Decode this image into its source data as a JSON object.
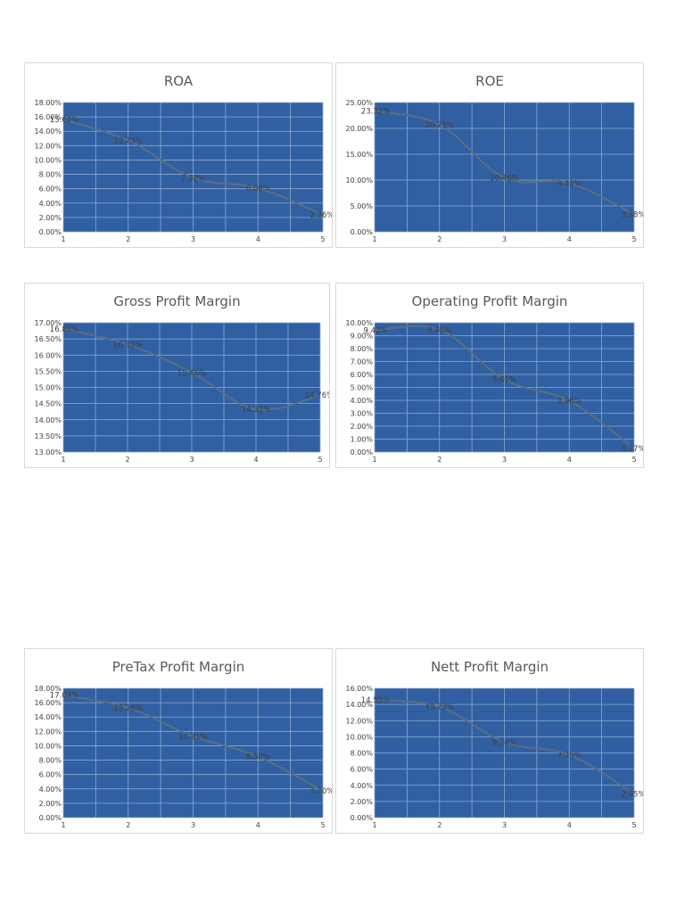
{
  "chart_data": [
    {
      "type": "line",
      "title": "ROA",
      "categories": [
        "1",
        "2",
        "3",
        "4",
        "5"
      ],
      "values": [
        15.62,
        12.73,
        7.52,
        6.08,
        2.36
      ],
      "data_labels": [
        "15.62%",
        "12.73%",
        "7.52%",
        "6.08%",
        "2.36%"
      ],
      "y_ticks": [
        "0.00%",
        "2.00%",
        "4.00%",
        "6.00%",
        "8.00%",
        "10.00%",
        "12.00%",
        "14.00%",
        "16.00%",
        "18.00%"
      ],
      "ylim": [
        0,
        18
      ],
      "grid": true,
      "plot_color": "#3060a2",
      "line_color": "#5c6e80"
    },
    {
      "type": "line",
      "title": "ROE",
      "categories": [
        "1",
        "2",
        "3",
        "4",
        "5"
      ],
      "values": [
        23.32,
        20.71,
        10.46,
        9.41,
        3.38
      ],
      "data_labels": [
        "23.32%",
        "20.71%",
        "10.46%",
        "9.41%",
        "3.38%"
      ],
      "y_ticks": [
        "0.00%",
        "5.00%",
        "10.00%",
        "15.00%",
        "20.00%",
        "25.00%"
      ],
      "ylim": [
        0,
        25
      ],
      "grid": true,
      "plot_color": "#3060a2",
      "line_color": "#5c6e80"
    },
    {
      "type": "line",
      "title": "Gross Profit Margin",
      "categories": [
        "1",
        "2",
        "3",
        "4",
        "5"
      ],
      "values": [
        16.81,
        16.33,
        15.46,
        14.32,
        14.76
      ],
      "data_labels": [
        "16.81%",
        "16.33%",
        "15.46%",
        "14.32%",
        "14.76%"
      ],
      "y_ticks": [
        "13.00%",
        "13.50%",
        "14.00%",
        "14.50%",
        "15.00%",
        "15.50%",
        "16.00%",
        "16.50%",
        "17.00%"
      ],
      "ylim": [
        13,
        17
      ],
      "grid": true,
      "plot_color": "#3060a2",
      "line_color": "#5c6e80"
    },
    {
      "type": "line",
      "title": "Operating Profit Margin",
      "categories": [
        "1",
        "2",
        "3",
        "4",
        "5"
      ],
      "values": [
        9.42,
        9.46,
        5.61,
        3.96,
        0.27
      ],
      "data_labels": [
        "9.42%",
        "9.46%",
        "5.61%",
        "3.96%",
        "0.27%"
      ],
      "y_ticks": [
        "0.00%",
        "1.00%",
        "2.00%",
        "3.00%",
        "4.00%",
        "5.00%",
        "6.00%",
        "7.00%",
        "8.00%",
        "9.00%",
        "10.00%"
      ],
      "ylim": [
        0,
        10
      ],
      "grid": true,
      "plot_color": "#3060a2",
      "line_color": "#5c6e80"
    },
    {
      "type": "line",
      "title": "PreTax Profit Margin",
      "categories": [
        "1",
        "2",
        "3",
        "4",
        "5"
      ],
      "values": [
        17.04,
        15.26,
        11.31,
        8.5,
        3.7
      ],
      "data_labels": [
        "17.04%",
        "15.26%",
        "11.31%",
        "8.50%",
        "3.70%"
      ],
      "y_ticks": [
        "0.00%",
        "2.00%",
        "4.00%",
        "6.00%",
        "8.00%",
        "10.00%",
        "12.00%",
        "14.00%",
        "16.00%",
        "18.00%"
      ],
      "ylim": [
        0,
        18
      ],
      "grid": true,
      "plot_color": "#3060a2",
      "line_color": "#5c6e80"
    },
    {
      "type": "line",
      "title": "Nett Profit Margin",
      "categories": [
        "1",
        "2",
        "3",
        "4",
        "5"
      ],
      "values": [
        14.55,
        13.72,
        9.34,
        7.75,
        2.95
      ],
      "data_labels": [
        "14.55%",
        "13.72%",
        "9.34%",
        "7.75%",
        "2.95%"
      ],
      "y_ticks": [
        "0.00%",
        "2.00%",
        "4.00%",
        "6.00%",
        "8.00%",
        "10.00%",
        "12.00%",
        "14.00%",
        "16.00%"
      ],
      "ylim": [
        0,
        16
      ],
      "grid": true,
      "plot_color": "#3060a2",
      "line_color": "#5c6e80"
    }
  ]
}
